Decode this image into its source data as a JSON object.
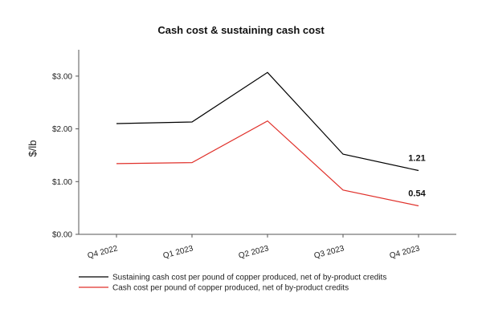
{
  "chart_data": {
    "type": "line",
    "title": "Cash cost & sustaining cash cost",
    "ylabel": "$/lb",
    "xlabel": "",
    "categories": [
      "Q4 2022",
      "Q1 2023",
      "Q2 2023",
      "Q3 2023",
      "Q4 2023"
    ],
    "ylim": [
      0,
      3.5
    ],
    "yticks": [
      0,
      1,
      2,
      3
    ],
    "ytick_labels": [
      "$0.00",
      "$1.00",
      "$2.00",
      "$3.00"
    ],
    "grid": false,
    "legend_position": "bottom",
    "series": [
      {
        "name": "Sustaining cash cost per pound of copper produced, net of by-product credits",
        "color": "#000000",
        "values": [
          2.1,
          2.13,
          3.07,
          1.52,
          1.21
        ],
        "end_label": "1.21"
      },
      {
        "name": "Cash cost per pound of copper produced, net of by-product credits",
        "color": "#e0302a",
        "values": [
          1.34,
          1.36,
          2.15,
          0.84,
          0.54
        ],
        "end_label": "0.54"
      }
    ]
  }
}
